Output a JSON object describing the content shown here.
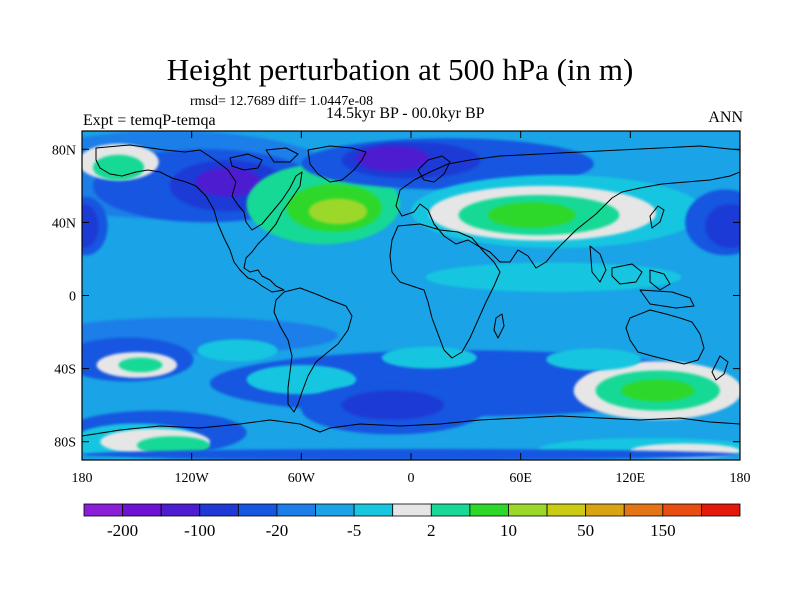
{
  "header": {
    "title": "Height perturbation at 500 hPa (in m)",
    "stats": "rmsd= 12.7689 diff= 1.0447e-08",
    "subtitle": "14.5kyr BP - 00.0kyr BP",
    "experiment": "Expt = temqP-temqa",
    "season": "ANN"
  },
  "map": {
    "projection": "cylindrical-equidistant",
    "lon_range": [
      -180,
      180
    ],
    "lat_range": [
      -90,
      90
    ],
    "lat_ticks": [
      {
        "value": 80,
        "label": "80N"
      },
      {
        "value": 40,
        "label": "40N"
      },
      {
        "value": 0,
        "label": "0"
      },
      {
        "value": -40,
        "label": "40S"
      },
      {
        "value": -80,
        "label": "80S"
      }
    ],
    "lon_ticks": [
      {
        "value": -180,
        "label": "180"
      },
      {
        "value": -120,
        "label": "120W"
      },
      {
        "value": -60,
        "label": "60W"
      },
      {
        "value": 0,
        "label": "0"
      },
      {
        "value": 60,
        "label": "60E"
      },
      {
        "value": 120,
        "label": "120E"
      },
      {
        "value": 180,
        "label": "180"
      }
    ],
    "land_outline_color": "#000000",
    "field_regions": [
      {
        "level": 6,
        "lon": 0,
        "lat": 0,
        "rx": 360,
        "ry": 180
      },
      {
        "level": 5,
        "lon": -132,
        "lat": 66,
        "rx": 92,
        "ry": 24
      },
      {
        "level": 4,
        "lon": -112,
        "lat": 60,
        "rx": 62,
        "ry": 20
      },
      {
        "level": 3,
        "lon": -100,
        "lat": 60,
        "rx": 32,
        "ry": 14
      },
      {
        "level": 2,
        "lon": -100,
        "lat": 62,
        "rx": 18,
        "ry": 8
      },
      {
        "level": 9,
        "lon": -48,
        "lat": 50,
        "rx": 42,
        "ry": 22
      },
      {
        "level": 10,
        "lon": -42,
        "lat": 48,
        "rx": 26,
        "ry": 13
      },
      {
        "level": 11,
        "lon": -40,
        "lat": 46,
        "rx": 16,
        "ry": 7
      },
      {
        "level": 8,
        "lon": -160,
        "lat": 73,
        "rx": 22,
        "ry": 10
      },
      {
        "level": 9,
        "lon": -160,
        "lat": 70,
        "rx": 14,
        "ry": 7
      },
      {
        "level": 4,
        "lon": 20,
        "lat": 72,
        "rx": 80,
        "ry": 14
      },
      {
        "level": 3,
        "lon": 0,
        "lat": 74,
        "rx": 38,
        "ry": 10
      },
      {
        "level": 2,
        "lon": -10,
        "lat": 75,
        "rx": 20,
        "ry": 7
      },
      {
        "level": 7,
        "lon": 80,
        "lat": 46,
        "rx": 80,
        "ry": 20
      },
      {
        "level": 8,
        "lon": 72,
        "lat": 45,
        "rx": 62,
        "ry": 15
      },
      {
        "level": 9,
        "lon": 70,
        "lat": 44,
        "rx": 44,
        "ry": 11
      },
      {
        "level": 10,
        "lon": 66,
        "lat": 44,
        "rx": 24,
        "ry": 7
      },
      {
        "level": 4,
        "lon": 172,
        "lat": 40,
        "rx": 22,
        "ry": 18
      },
      {
        "level": 3,
        "lon": 175,
        "lat": 38,
        "rx": 14,
        "ry": 12
      },
      {
        "level": 4,
        "lon": -178,
        "lat": 38,
        "rx": 12,
        "ry": 16
      },
      {
        "level": 3,
        "lon": -179,
        "lat": 38,
        "rx": 8,
        "ry": 12
      },
      {
        "level": 7,
        "lon": 78,
        "lat": 10,
        "rx": 70,
        "ry": 8
      },
      {
        "level": 5,
        "lon": -120,
        "lat": -22,
        "rx": 80,
        "ry": 10
      },
      {
        "level": 4,
        "lon": -155,
        "lat": -35,
        "rx": 36,
        "ry": 12
      },
      {
        "level": 8,
        "lon": -150,
        "lat": -38,
        "rx": 22,
        "ry": 7
      },
      {
        "level": 9,
        "lon": -148,
        "lat": -38,
        "rx": 12,
        "ry": 4
      },
      {
        "level": 7,
        "lon": -95,
        "lat": -30,
        "rx": 22,
        "ry": 6
      },
      {
        "level": 4,
        "lon": 30,
        "lat": -48,
        "rx": 140,
        "ry": 18
      },
      {
        "level": 7,
        "lon": -60,
        "lat": -46,
        "rx": 30,
        "ry": 8
      },
      {
        "level": 7,
        "lon": 10,
        "lat": -34,
        "rx": 26,
        "ry": 6
      },
      {
        "level": 4,
        "lon": -10,
        "lat": -62,
        "rx": 50,
        "ry": 14
      },
      {
        "level": 3,
        "lon": -10,
        "lat": -60,
        "rx": 28,
        "ry": 8
      },
      {
        "level": 4,
        "lon": -140,
        "lat": -75,
        "rx": 50,
        "ry": 12
      },
      {
        "level": 8,
        "lon": 135,
        "lat": -52,
        "rx": 46,
        "ry": 16
      },
      {
        "level": 9,
        "lon": 135,
        "lat": -52,
        "rx": 34,
        "ry": 11
      },
      {
        "level": 10,
        "lon": 135,
        "lat": -52,
        "rx": 20,
        "ry": 6
      },
      {
        "level": 7,
        "lon": 100,
        "lat": -35,
        "rx": 26,
        "ry": 6
      },
      {
        "level": 7,
        "lon": -150,
        "lat": -80,
        "rx": 36,
        "ry": 10
      },
      {
        "level": 8,
        "lon": -140,
        "lat": -80,
        "rx": 30,
        "ry": 7
      },
      {
        "level": 9,
        "lon": -130,
        "lat": -82,
        "rx": 20,
        "ry": 5
      },
      {
        "level": 7,
        "lon": 130,
        "lat": -84,
        "rx": 60,
        "ry": 6
      },
      {
        "level": 8,
        "lon": 150,
        "lat": -85,
        "rx": 30,
        "ry": 4
      },
      {
        "level": 4,
        "lon": 0,
        "lat": -87,
        "rx": 180,
        "ry": 3
      }
    ]
  },
  "colorbar": {
    "colors": [
      "#8b1fd8",
      "#6e12d6",
      "#4d1ed1",
      "#1f3ad6",
      "#1656e0",
      "#1d7ee8",
      "#1aa3e6",
      "#19c6e0",
      "#e6e6e6",
      "#18d996",
      "#2ed82a",
      "#9cd82a",
      "#cbcb14",
      "#d8a414",
      "#e37514",
      "#ea4d12",
      "#e4190c"
    ],
    "labels": [
      {
        "index": 1,
        "label": "-200"
      },
      {
        "index": 3,
        "label": "-100"
      },
      {
        "index": 5,
        "label": "-20"
      },
      {
        "index": 7,
        "label": "-5"
      },
      {
        "index": 9,
        "label": "2"
      },
      {
        "index": 11,
        "label": "10"
      },
      {
        "index": 13,
        "label": "50"
      },
      {
        "index": 15,
        "label": "150"
      }
    ]
  }
}
